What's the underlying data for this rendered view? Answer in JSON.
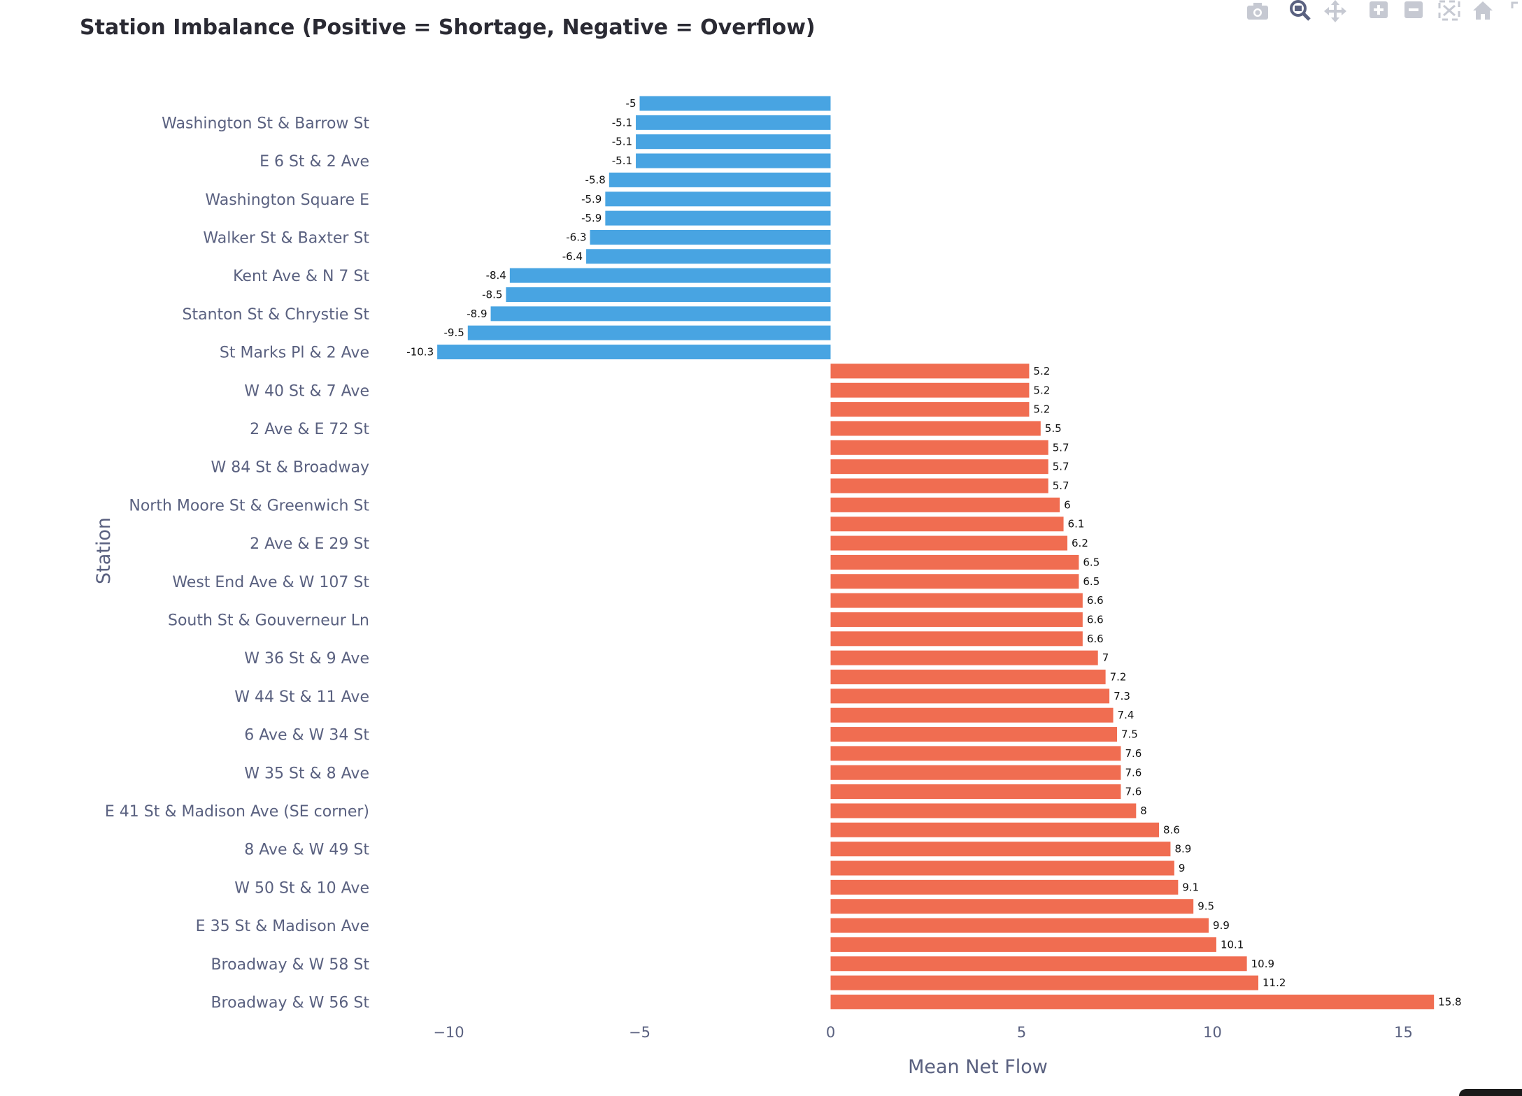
{
  "chart_data": {
    "type": "bar",
    "orientation": "horizontal",
    "title": "Station Imbalance (Positive = Shortage, Negative = Overflow)",
    "xlabel": "Mean Net Flow",
    "ylabel": "Station",
    "xlim": [
      -11,
      16.5
    ],
    "x_ticks": [
      -10,
      -5,
      0,
      5,
      10,
      15
    ],
    "x_tick_labels": [
      "−10",
      "−5",
      "0",
      "5",
      "10",
      "15"
    ],
    "grid": false,
    "legend": "none",
    "colors": {
      "negative": "#48a4e2",
      "positive": "#f06d51"
    },
    "bars": [
      {
        "label": "",
        "value": -5
      },
      {
        "label": "Washington St & Barrow St",
        "value": -5.1
      },
      {
        "label": "",
        "value": -5.1
      },
      {
        "label": "E 6 St & 2 Ave",
        "value": -5.1
      },
      {
        "label": "",
        "value": -5.8
      },
      {
        "label": "Washington Square E",
        "value": -5.9
      },
      {
        "label": "",
        "value": -5.9
      },
      {
        "label": "Walker St & Baxter St",
        "value": -6.3
      },
      {
        "label": "",
        "value": -6.4
      },
      {
        "label": "Kent Ave & N 7 St",
        "value": -8.4
      },
      {
        "label": "",
        "value": -8.5
      },
      {
        "label": "Stanton St & Chrystie St",
        "value": -8.9
      },
      {
        "label": "",
        "value": -9.5
      },
      {
        "label": "St Marks Pl & 2 Ave",
        "value": -10.3
      },
      {
        "label": "",
        "value": 5.2
      },
      {
        "label": "W 40 St & 7 Ave",
        "value": 5.2
      },
      {
        "label": "",
        "value": 5.2
      },
      {
        "label": "2 Ave & E 72 St",
        "value": 5.5
      },
      {
        "label": "",
        "value": 5.7
      },
      {
        "label": "W 84 St & Broadway",
        "value": 5.7
      },
      {
        "label": "",
        "value": 5.7
      },
      {
        "label": "North Moore St & Greenwich St",
        "value": 6
      },
      {
        "label": "",
        "value": 6.1
      },
      {
        "label": "2 Ave & E 29 St",
        "value": 6.2
      },
      {
        "label": "",
        "value": 6.5
      },
      {
        "label": "West End Ave & W 107 St",
        "value": 6.5
      },
      {
        "label": "",
        "value": 6.6
      },
      {
        "label": "South St & Gouverneur Ln",
        "value": 6.6
      },
      {
        "label": "",
        "value": 6.6
      },
      {
        "label": "W 36 St & 9 Ave",
        "value": 7
      },
      {
        "label": "",
        "value": 7.2
      },
      {
        "label": "W 44 St & 11 Ave",
        "value": 7.3
      },
      {
        "label": "",
        "value": 7.4
      },
      {
        "label": "6 Ave & W 34 St",
        "value": 7.5
      },
      {
        "label": "",
        "value": 7.6
      },
      {
        "label": "W 35 St & 8 Ave",
        "value": 7.6
      },
      {
        "label": "",
        "value": 7.6
      },
      {
        "label": "E 41 St & Madison Ave (SE corner)",
        "value": 8
      },
      {
        "label": "",
        "value": 8.6
      },
      {
        "label": "8 Ave & W 49 St",
        "value": 8.9
      },
      {
        "label": "",
        "value": 9
      },
      {
        "label": "W 50 St & 10 Ave",
        "value": 9.1
      },
      {
        "label": "",
        "value": 9.5
      },
      {
        "label": "E 35 St & Madison Ave",
        "value": 9.9
      },
      {
        "label": "",
        "value": 10.1
      },
      {
        "label": "Broadway & W 58 St",
        "value": 10.9
      },
      {
        "label": "",
        "value": 11.2
      },
      {
        "label": "Broadway & W 56 St",
        "value": 15.8
      }
    ]
  },
  "modebar": {
    "icons": [
      "camera-icon",
      "zoom-icon",
      "pan-icon",
      "zoom-in-icon",
      "zoom-out-icon",
      "autoscale-icon",
      "home-icon"
    ]
  }
}
